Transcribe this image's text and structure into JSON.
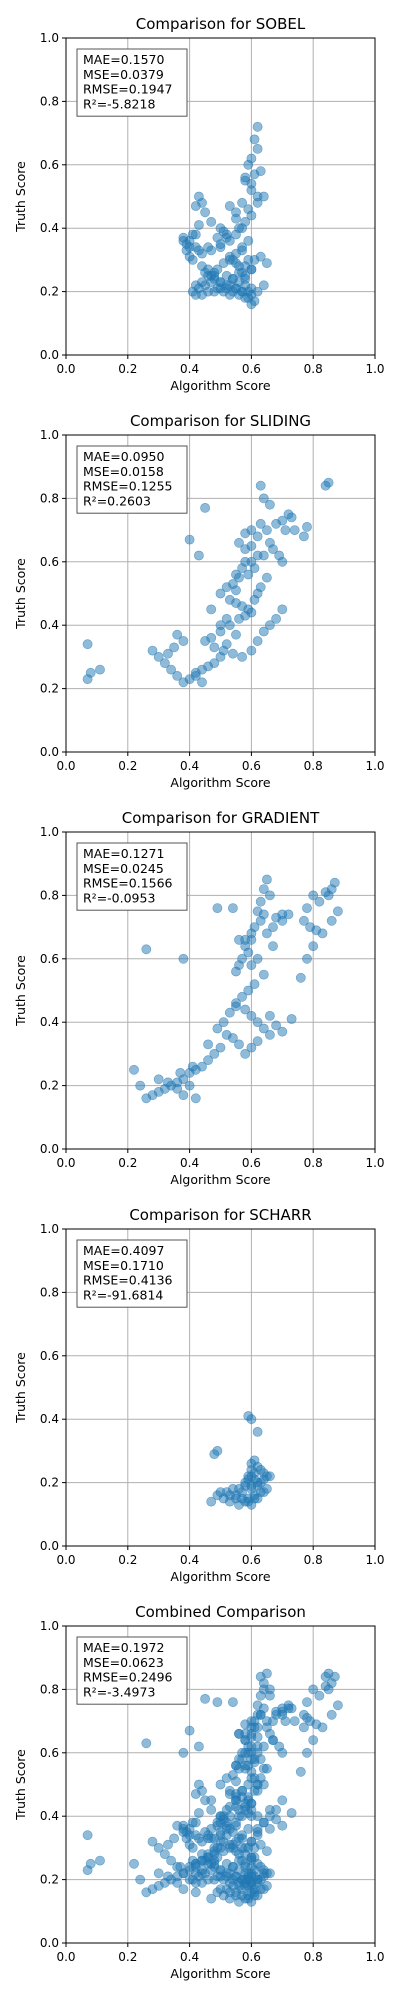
{
  "chart_data": [
    {
      "type": "scatter",
      "title": "Comparison for SOBEL",
      "xlabel": "Algorithm Score",
      "ylabel": "Truth Score",
      "xlim": [
        0,
        1
      ],
      "ylim": [
        0,
        1
      ],
      "xticks": [
        "0.0",
        "0.2",
        "0.4",
        "0.6",
        "0.8",
        "1.0"
      ],
      "yticks": [
        "0.0",
        "0.2",
        "0.4",
        "0.6",
        "0.8",
        "1.0"
      ],
      "grid": true,
      "stats": [
        "MAE=0.1570",
        "MSE=0.0379",
        "RMSE=0.1947",
        "R²=-5.8218"
      ],
      "x": [
        0.62,
        0.61,
        0.6,
        0.62,
        0.63,
        0.59,
        0.58,
        0.62,
        0.6,
        0.57,
        0.55,
        0.58,
        0.56,
        0.6,
        0.59,
        0.43,
        0.44,
        0.45,
        0.42,
        0.43,
        0.47,
        0.5,
        0.52,
        0.53,
        0.55,
        0.57,
        0.5,
        0.47,
        0.38,
        0.39,
        0.4,
        0.41,
        0.42,
        0.43,
        0.4,
        0.38,
        0.39,
        0.41,
        0.44,
        0.46,
        0.48,
        0.52,
        0.54,
        0.56,
        0.58,
        0.6,
        0.62,
        0.64,
        0.58,
        0.59,
        0.6,
        0.57,
        0.55,
        0.53,
        0.5,
        0.48,
        0.46,
        0.44,
        0.42,
        0.45,
        0.47,
        0.49,
        0.51,
        0.53,
        0.55,
        0.57,
        0.59,
        0.61,
        0.63,
        0.65,
        0.6,
        0.58,
        0.56,
        0.54,
        0.52,
        0.5,
        0.48,
        0.46,
        0.44,
        0.42,
        0.41,
        0.43,
        0.45,
        0.47,
        0.49,
        0.51,
        0.53,
        0.55,
        0.57,
        0.59,
        0.61,
        0.6,
        0.58,
        0.56,
        0.54,
        0.52,
        0.5,
        0.48,
        0.55,
        0.53,
        0.51,
        0.49,
        0.57,
        0.55,
        0.53,
        0.62,
        0.64,
        0.61,
        0.58,
        0.6,
        0.59,
        0.57,
        0.46,
        0.44,
        0.4,
        0.42,
        0.5,
        0.52,
        0.54,
        0.56,
        0.6,
        0.58
      ],
      "y": [
        0.72,
        0.68,
        0.62,
        0.65,
        0.58,
        0.6,
        0.55,
        0.5,
        0.52,
        0.48,
        0.45,
        0.42,
        0.4,
        0.44,
        0.46,
        0.5,
        0.48,
        0.45,
        0.47,
        0.41,
        0.42,
        0.4,
        0.38,
        0.36,
        0.38,
        0.4,
        0.34,
        0.33,
        0.37,
        0.35,
        0.36,
        0.38,
        0.34,
        0.33,
        0.31,
        0.36,
        0.33,
        0.3,
        0.28,
        0.27,
        0.26,
        0.25,
        0.24,
        0.23,
        0.22,
        0.21,
        0.2,
        0.22,
        0.24,
        0.2,
        0.19,
        0.2,
        0.21,
        0.22,
        0.23,
        0.24,
        0.25,
        0.23,
        0.22,
        0.26,
        0.25,
        0.27,
        0.29,
        0.3,
        0.32,
        0.34,
        0.36,
        0.3,
        0.31,
        0.29,
        0.27,
        0.28,
        0.26,
        0.24,
        0.22,
        0.21,
        0.2,
        0.2,
        0.19,
        0.19,
        0.2,
        0.21,
        0.22,
        0.23,
        0.21,
        0.2,
        0.19,
        0.21,
        0.2,
        0.18,
        0.17,
        0.16,
        0.18,
        0.19,
        0.2,
        0.21,
        0.23,
        0.25,
        0.43,
        0.47,
        0.39,
        0.37,
        0.33,
        0.29,
        0.31,
        0.48,
        0.5,
        0.57,
        0.56,
        0.54,
        0.3,
        0.26,
        0.34,
        0.32,
        0.34,
        0.38,
        0.35,
        0.37,
        0.3,
        0.28,
        0.27,
        0.25
      ]
    },
    {
      "type": "scatter",
      "title": "Comparison for SLIDING",
      "xlabel": "Algorithm Score",
      "ylabel": "Truth Score",
      "xlim": [
        0,
        1
      ],
      "ylim": [
        0,
        1
      ],
      "xticks": [
        "0.0",
        "0.2",
        "0.4",
        "0.6",
        "0.8",
        "1.0"
      ],
      "yticks": [
        "0.0",
        "0.2",
        "0.4",
        "0.6",
        "0.8",
        "1.0"
      ],
      "grid": true,
      "stats": [
        "MAE=0.0950",
        "MSE=0.0158",
        "RMSE=0.1255",
        "R²=0.2603"
      ],
      "x": [
        0.85,
        0.84,
        0.64,
        0.63,
        0.66,
        0.72,
        0.73,
        0.7,
        0.68,
        0.71,
        0.65,
        0.62,
        0.6,
        0.58,
        0.66,
        0.69,
        0.74,
        0.78,
        0.77,
        0.64,
        0.6,
        0.57,
        0.55,
        0.58,
        0.62,
        0.56,
        0.54,
        0.52,
        0.5,
        0.53,
        0.55,
        0.57,
        0.59,
        0.6,
        0.61,
        0.62,
        0.63,
        0.58,
        0.56,
        0.53,
        0.5,
        0.47,
        0.45,
        0.48,
        0.51,
        0.54,
        0.57,
        0.6,
        0.62,
        0.64,
        0.66,
        0.68,
        0.7,
        0.55,
        0.52,
        0.5,
        0.48,
        0.46,
        0.44,
        0.42,
        0.4,
        0.38,
        0.36,
        0.34,
        0.32,
        0.3,
        0.28,
        0.36,
        0.38,
        0.35,
        0.33,
        0.07,
        0.08,
        0.07,
        0.11,
        0.45,
        0.4,
        0.43,
        0.56,
        0.58,
        0.6,
        0.63,
        0.67,
        0.7,
        0.65,
        0.47,
        0.42,
        0.44,
        0.5,
        0.52,
        0.55,
        0.59,
        0.61
      ],
      "y": [
        0.85,
        0.84,
        0.8,
        0.84,
        0.78,
        0.75,
        0.74,
        0.73,
        0.72,
        0.7,
        0.7,
        0.68,
        0.65,
        0.64,
        0.66,
        0.62,
        0.7,
        0.71,
        0.68,
        0.62,
        0.6,
        0.58,
        0.56,
        0.6,
        0.62,
        0.55,
        0.53,
        0.52,
        0.5,
        0.48,
        0.47,
        0.46,
        0.45,
        0.44,
        0.48,
        0.5,
        0.52,
        0.43,
        0.42,
        0.4,
        0.38,
        0.36,
        0.35,
        0.33,
        0.32,
        0.31,
        0.3,
        0.32,
        0.35,
        0.38,
        0.4,
        0.42,
        0.45,
        0.37,
        0.34,
        0.3,
        0.28,
        0.27,
        0.26,
        0.25,
        0.23,
        0.22,
        0.24,
        0.26,
        0.28,
        0.3,
        0.32,
        0.37,
        0.35,
        0.33,
        0.31,
        0.34,
        0.25,
        0.23,
        0.26,
        0.77,
        0.67,
        0.62,
        0.66,
        0.69,
        0.7,
        0.72,
        0.64,
        0.6,
        0.55,
        0.45,
        0.24,
        0.22,
        0.4,
        0.42,
        0.51,
        0.56,
        0.58
      ]
    },
    {
      "type": "scatter",
      "title": "Comparison for GRADIENT",
      "xlabel": "Algorithm Score",
      "ylabel": "Truth Score",
      "xlim": [
        0,
        1
      ],
      "ylim": [
        0,
        1
      ],
      "xticks": [
        "0.0",
        "0.2",
        "0.4",
        "0.6",
        "0.8",
        "1.0"
      ],
      "yticks": [
        "0.0",
        "0.2",
        "0.4",
        "0.6",
        "0.8",
        "1.0"
      ],
      "grid": true,
      "stats": [
        "MAE=0.1271",
        "MSE=0.0245",
        "RMSE=0.1566",
        "R²=-0.0953"
      ],
      "x": [
        0.87,
        0.86,
        0.85,
        0.84,
        0.82,
        0.8,
        0.78,
        0.77,
        0.79,
        0.81,
        0.83,
        0.86,
        0.88,
        0.8,
        0.78,
        0.65,
        0.64,
        0.66,
        0.63,
        0.62,
        0.68,
        0.7,
        0.72,
        0.67,
        0.65,
        0.6,
        0.58,
        0.59,
        0.57,
        0.56,
        0.55,
        0.6,
        0.62,
        0.64,
        0.61,
        0.59,
        0.57,
        0.55,
        0.58,
        0.6,
        0.62,
        0.64,
        0.66,
        0.55,
        0.53,
        0.51,
        0.49,
        0.52,
        0.54,
        0.56,
        0.58,
        0.6,
        0.62,
        0.5,
        0.48,
        0.46,
        0.44,
        0.42,
        0.4,
        0.38,
        0.36,
        0.34,
        0.32,
        0.3,
        0.28,
        0.26,
        0.24,
        0.22,
        0.3,
        0.33,
        0.36,
        0.38,
        0.42,
        0.4,
        0.37,
        0.41,
        0.26,
        0.38,
        0.54,
        0.56,
        0.58,
        0.6,
        0.61,
        0.63,
        0.64,
        0.67,
        0.7,
        0.73,
        0.76,
        0.66,
        0.68,
        0.7,
        0.46,
        0.49
      ],
      "y": [
        0.84,
        0.82,
        0.8,
        0.81,
        0.78,
        0.8,
        0.76,
        0.72,
        0.7,
        0.69,
        0.68,
        0.72,
        0.75,
        0.64,
        0.6,
        0.85,
        0.82,
        0.8,
        0.78,
        0.75,
        0.73,
        0.72,
        0.74,
        0.7,
        0.68,
        0.66,
        0.64,
        0.62,
        0.6,
        0.58,
        0.56,
        0.58,
        0.6,
        0.55,
        0.52,
        0.5,
        0.48,
        0.46,
        0.44,
        0.42,
        0.4,
        0.38,
        0.36,
        0.45,
        0.43,
        0.4,
        0.38,
        0.36,
        0.35,
        0.33,
        0.3,
        0.32,
        0.34,
        0.32,
        0.3,
        0.28,
        0.26,
        0.25,
        0.24,
        0.22,
        0.21,
        0.2,
        0.19,
        0.18,
        0.17,
        0.16,
        0.2,
        0.25,
        0.22,
        0.21,
        0.19,
        0.17,
        0.16,
        0.2,
        0.24,
        0.26,
        0.63,
        0.6,
        0.76,
        0.66,
        0.66,
        0.68,
        0.7,
        0.72,
        0.74,
        0.64,
        0.74,
        0.41,
        0.54,
        0.42,
        0.39,
        0.37,
        0.33,
        0.76
      ]
    },
    {
      "type": "scatter",
      "title": "Comparison for SCHARR",
      "xlabel": "Algorithm Score",
      "ylabel": "Truth Score",
      "xlim": [
        0,
        1
      ],
      "ylim": [
        0,
        1
      ],
      "xticks": [
        "0.0",
        "0.2",
        "0.4",
        "0.6",
        "0.8",
        "1.0"
      ],
      "yticks": [
        "0.0",
        "0.2",
        "0.4",
        "0.6",
        "0.8",
        "1.0"
      ],
      "grid": true,
      "stats": [
        "MAE=0.4097",
        "MSE=0.1710",
        "RMSE=0.4136",
        "R²=-91.6814"
      ],
      "x": [
        0.59,
        0.6,
        0.62,
        0.48,
        0.49,
        0.61,
        0.6,
        0.62,
        0.63,
        0.64,
        0.65,
        0.6,
        0.59,
        0.61,
        0.63,
        0.62,
        0.6,
        0.58,
        0.56,
        0.54,
        0.52,
        0.5,
        0.53,
        0.55,
        0.57,
        0.59,
        0.61,
        0.63,
        0.65,
        0.58,
        0.6,
        0.62,
        0.57,
        0.59,
        0.61,
        0.64,
        0.66,
        0.55,
        0.53,
        0.51,
        0.49,
        0.47,
        0.56,
        0.58,
        0.6,
        0.62,
        0.64,
        0.6,
        0.61,
        0.59
      ],
      "y": [
        0.41,
        0.4,
        0.36,
        0.29,
        0.3,
        0.27,
        0.26,
        0.25,
        0.24,
        0.23,
        0.22,
        0.22,
        0.21,
        0.21,
        0.2,
        0.2,
        0.19,
        0.19,
        0.18,
        0.18,
        0.17,
        0.17,
        0.16,
        0.16,
        0.15,
        0.15,
        0.16,
        0.17,
        0.18,
        0.2,
        0.18,
        0.19,
        0.17,
        0.14,
        0.15,
        0.21,
        0.22,
        0.15,
        0.14,
        0.15,
        0.16,
        0.14,
        0.13,
        0.14,
        0.13,
        0.15,
        0.17,
        0.24,
        0.23,
        0.22
      ]
    },
    {
      "type": "scatter",
      "title": "Combined Comparison",
      "xlabel": "Algorithm Score",
      "ylabel": "Truth Score",
      "xlim": [
        0,
        1
      ],
      "ylim": [
        0,
        1
      ],
      "xticks": [
        "0.0",
        "0.2",
        "0.4",
        "0.6",
        "0.8",
        "1.0"
      ],
      "yticks": [
        "0.0",
        "0.2",
        "0.4",
        "0.6",
        "0.8",
        "1.0"
      ],
      "grid": true,
      "stats": [
        "MAE=0.1972",
        "MSE=0.0623",
        "RMSE=0.2496",
        "R²=-3.4973"
      ],
      "combined": true
    }
  ]
}
